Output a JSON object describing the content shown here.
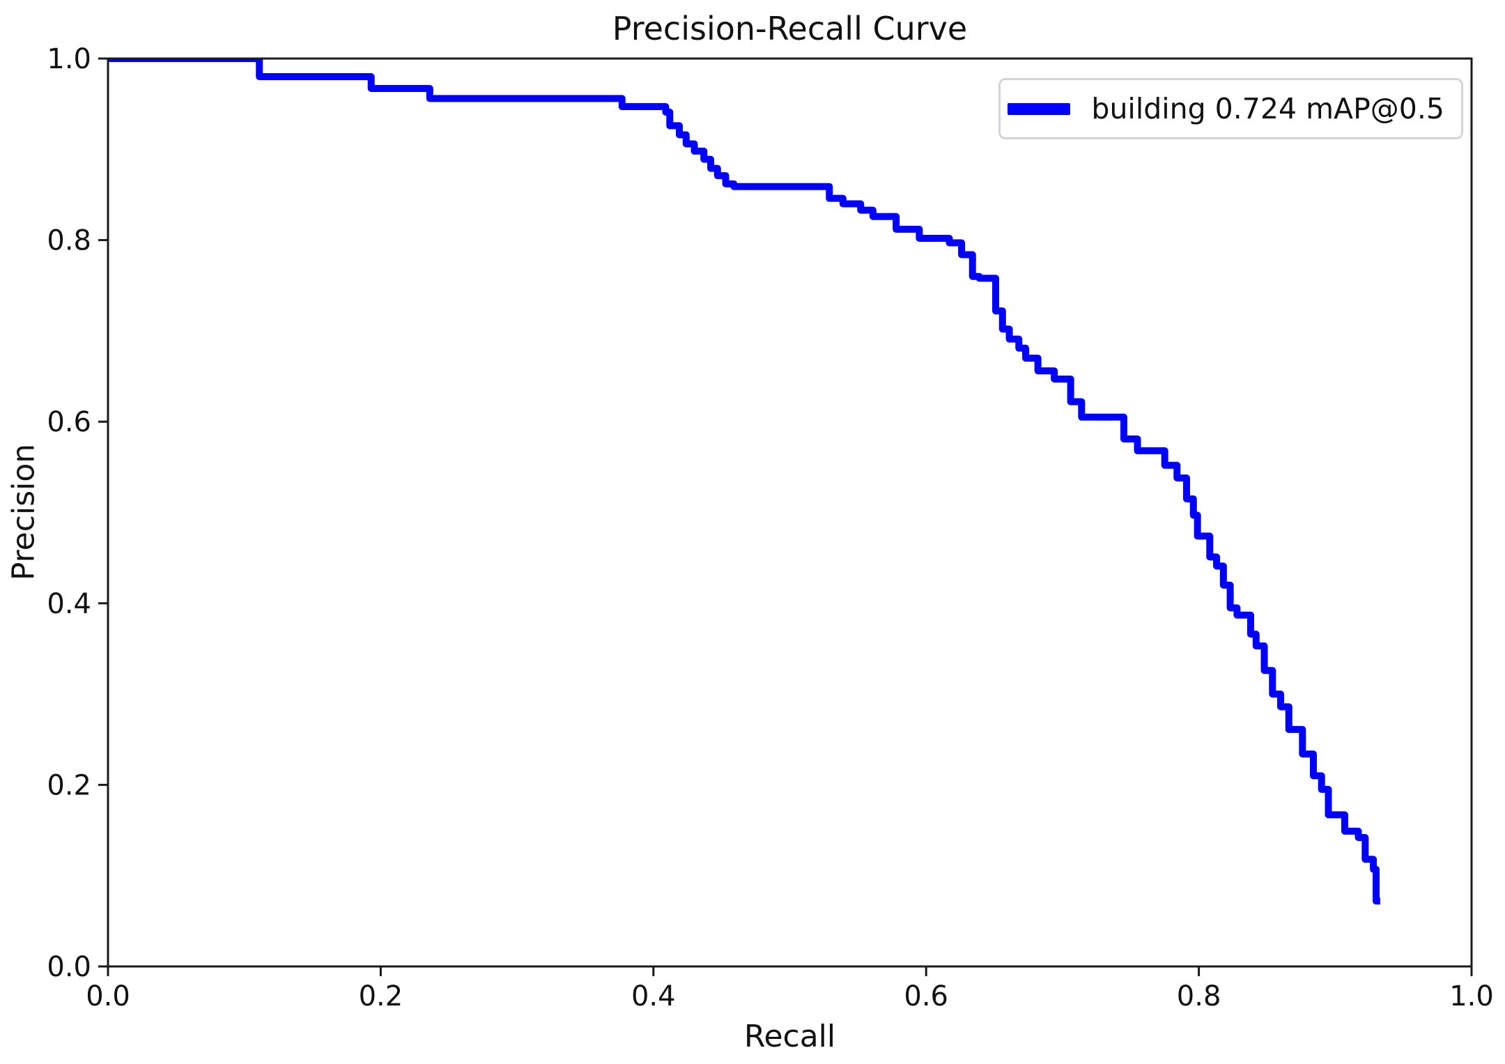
{
  "chart_data": {
    "type": "line",
    "step_mode": "post",
    "title": "Precision-Recall Curve",
    "xlabel": "Recall",
    "ylabel": "Precision",
    "xlim": [
      0.0,
      1.0
    ],
    "ylim": [
      0.0,
      1.0
    ],
    "grid": false,
    "x_ticks": [
      0.0,
      0.2,
      0.4,
      0.6,
      0.8,
      1.0
    ],
    "x_tick_labels": [
      "0.0",
      "0.2",
      "0.4",
      "0.6",
      "0.8",
      "1.0"
    ],
    "y_ticks": [
      0.0,
      0.2,
      0.4,
      0.6,
      0.8,
      1.0
    ],
    "y_tick_labels": [
      "0.0",
      "0.2",
      "0.4",
      "0.6",
      "0.8",
      "1.0"
    ],
    "colors": {
      "line": "#0000ff",
      "axis": "#1a1a1a",
      "text": "#111111",
      "legend_border": "#d4d4d4"
    },
    "legend": {
      "position": "upper right",
      "entries": [
        {
          "label": "building 0.724 mAP@0.5",
          "color": "#0000ff"
        }
      ]
    },
    "series": [
      {
        "name": "building",
        "metric": "mAP@0.5",
        "map_value": 0.724,
        "color": "#0000ff",
        "line_width": 10,
        "points": [
          [
            0.0,
            1.0
          ],
          [
            0.111,
            0.98
          ],
          [
            0.193,
            0.967
          ],
          [
            0.236,
            0.956
          ],
          [
            0.377,
            0.947
          ],
          [
            0.409,
            0.941
          ],
          [
            0.412,
            0.926
          ],
          [
            0.419,
            0.916
          ],
          [
            0.424,
            0.906
          ],
          [
            0.43,
            0.898
          ],
          [
            0.437,
            0.889
          ],
          [
            0.442,
            0.879
          ],
          [
            0.447,
            0.871
          ],
          [
            0.453,
            0.862
          ],
          [
            0.459,
            0.859
          ],
          [
            0.529,
            0.846
          ],
          [
            0.539,
            0.84
          ],
          [
            0.552,
            0.833
          ],
          [
            0.561,
            0.826
          ],
          [
            0.578,
            0.812
          ],
          [
            0.595,
            0.802
          ],
          [
            0.617,
            0.797
          ],
          [
            0.626,
            0.784
          ],
          [
            0.634,
            0.76
          ],
          [
            0.639,
            0.758
          ],
          [
            0.651,
            0.722
          ],
          [
            0.656,
            0.702
          ],
          [
            0.661,
            0.691
          ],
          [
            0.668,
            0.681
          ],
          [
            0.673,
            0.67
          ],
          [
            0.682,
            0.656
          ],
          [
            0.694,
            0.647
          ],
          [
            0.706,
            0.622
          ],
          [
            0.714,
            0.605
          ],
          [
            0.745,
            0.581
          ],
          [
            0.755,
            0.568
          ],
          [
            0.775,
            0.552
          ],
          [
            0.784,
            0.538
          ],
          [
            0.791,
            0.515
          ],
          [
            0.796,
            0.497
          ],
          [
            0.799,
            0.474
          ],
          [
            0.808,
            0.451
          ],
          [
            0.813,
            0.441
          ],
          [
            0.818,
            0.42
          ],
          [
            0.823,
            0.395
          ],
          [
            0.828,
            0.387
          ],
          [
            0.838,
            0.366
          ],
          [
            0.842,
            0.353
          ],
          [
            0.848,
            0.326
          ],
          [
            0.854,
            0.3
          ],
          [
            0.86,
            0.286
          ],
          [
            0.866,
            0.261
          ],
          [
            0.876,
            0.234
          ],
          [
            0.884,
            0.21
          ],
          [
            0.89,
            0.195
          ],
          [
            0.895,
            0.167
          ],
          [
            0.907,
            0.149
          ],
          [
            0.917,
            0.142
          ],
          [
            0.922,
            0.118
          ],
          [
            0.928,
            0.107
          ],
          [
            0.93,
            0.072
          ],
          [
            0.933,
            0.072
          ]
        ]
      }
    ]
  }
}
